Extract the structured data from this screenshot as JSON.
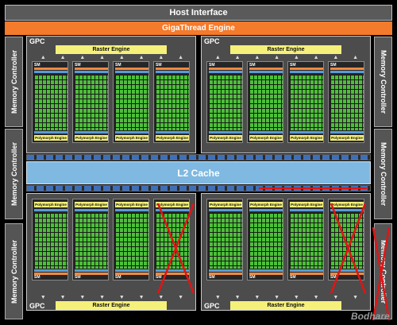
{
  "host_interface": "Host Interface",
  "gigathread": "GigaThread Engine",
  "memory_controller": "Memory Controller",
  "l2_cache": "L2 Cache",
  "gpc_label": "GPC",
  "raster_engine": "Raster Engine",
  "sm_label": "SM",
  "polymorph_engine": "Polymorph Engine",
  "watermark": "Bodhare",
  "colors": {
    "giga": "#f47a2c",
    "raster": "#f5f07a",
    "cores": "#4dbf3a",
    "l2": "#7fb8e0",
    "disabled_mark": "#e01515"
  }
}
